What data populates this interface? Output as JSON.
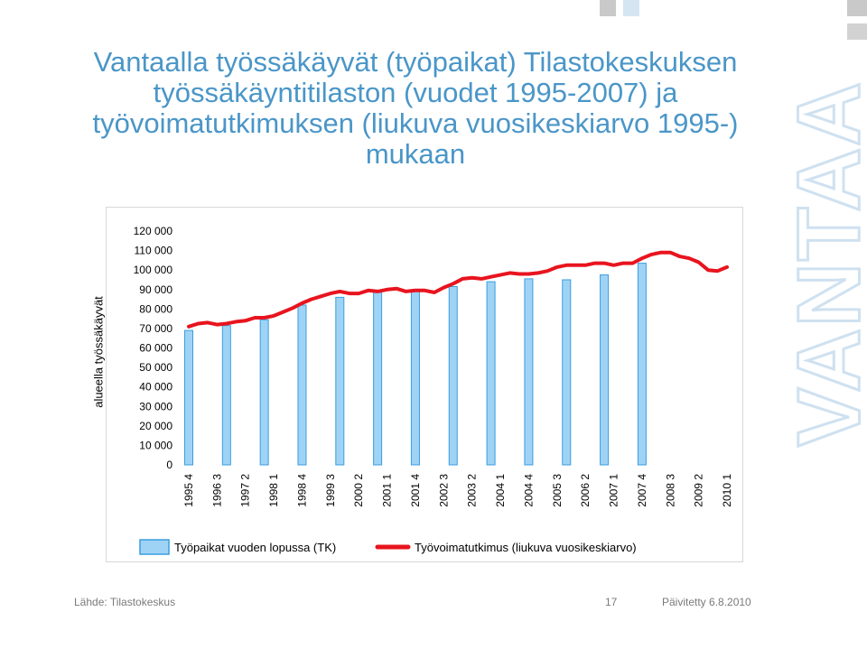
{
  "page": {
    "title": "Vantaalla työssäkäyvät   (työpaikat) Tilastokeskuksen työssäkäyntitilaston (vuodet 1995-2007) ja työvoimatutkimuksen (liukuva vuosikeskiarvo 1995-) mukaan",
    "brand_logo": "VANTAA",
    "footer_source": "Lähde: Tilastokeskus",
    "footer_page_number": "17",
    "footer_updated": "Päivitetty 6.8.2010",
    "colors": {
      "title": "#4a96c8",
      "bar_fill": "#9fd3f5",
      "bar_stroke": "#3a9ee0",
      "line": "#e8141e",
      "deco_square_gray": "#c9c9c9",
      "deco_square_blue": "#cfe0f0"
    }
  },
  "chart_data": {
    "type": "bar+line",
    "ylabel": "alueella työssäkäyvät",
    "ylim": [
      0,
      120000
    ],
    "yticks": [
      0,
      10000,
      20000,
      30000,
      40000,
      50000,
      60000,
      70000,
      80000,
      90000,
      100000,
      110000,
      120000
    ],
    "ytick_labels": [
      "0",
      "10 000",
      "20 000",
      "30 000",
      "40 000",
      "50 000",
      "60 000",
      "70 000",
      "80 000",
      "90 000",
      "100 000",
      "110 000",
      "120 000"
    ],
    "xtick_labels": [
      "1995 4",
      "1996 3",
      "1997 2",
      "1998 1",
      "1998 4",
      "1999 3",
      "2000 2",
      "2001 1",
      "2001 4",
      "2002 3",
      "2003 2",
      "2004 1",
      "2004 4",
      "2005 3",
      "2006 2",
      "2007 1",
      "2007 4",
      "2008 3",
      "2009 2",
      "2010 1"
    ],
    "grid": false,
    "legend_position": "bottom",
    "series": [
      {
        "name": "Työpaikat vuoden lopussa (TK)",
        "type": "bar",
        "x": [
          "1995 4",
          "1996 4",
          "1997 4",
          "1998 4",
          "1999 4",
          "2000 4",
          "2001 4",
          "2002 4",
          "2003 4",
          "2004 4",
          "2005 4",
          "2006 4",
          "2007 4"
        ],
        "values": [
          69000,
          71500,
          74500,
          82000,
          86000,
          88500,
          89000,
          91500,
          94000,
          95500,
          95000,
          97500,
          103500
        ]
      },
      {
        "name": "Työvoimatutkimus (liukuva vuosikeskiarvo)",
        "type": "line",
        "x": [
          "1995 4",
          "1996 1",
          "1996 2",
          "1996 3",
          "1996 4",
          "1997 1",
          "1997 2",
          "1997 3",
          "1997 4",
          "1998 1",
          "1998 2",
          "1998 3",
          "1998 4",
          "1999 1",
          "1999 2",
          "1999 3",
          "1999 4",
          "2000 1",
          "2000 2",
          "2000 3",
          "2000 4",
          "2001 1",
          "2001 2",
          "2001 3",
          "2001 4",
          "2002 1",
          "2002 2",
          "2002 3",
          "2002 4",
          "2003 1",
          "2003 2",
          "2003 3",
          "2003 4",
          "2004 1",
          "2004 2",
          "2004 3",
          "2004 4",
          "2005 1",
          "2005 2",
          "2005 3",
          "2005 4",
          "2006 1",
          "2006 2",
          "2006 3",
          "2006 4",
          "2007 1",
          "2007 2",
          "2007 3",
          "2007 4",
          "2008 1",
          "2008 2",
          "2008 3",
          "2008 4",
          "2009 1",
          "2009 2",
          "2009 3",
          "2009 4",
          "2010 1"
        ],
        "values": [
          71000,
          72500,
          73000,
          72000,
          72500,
          73500,
          74000,
          75500,
          75500,
          76500,
          78500,
          80500,
          83000,
          85000,
          86500,
          88000,
          89000,
          88000,
          88000,
          89500,
          89000,
          90000,
          90500,
          89000,
          89500,
          89500,
          88500,
          91000,
          93000,
          95500,
          96000,
          95500,
          96500,
          97500,
          98500,
          98000,
          98000,
          98500,
          99500,
          101500,
          102500,
          102500,
          102500,
          103500,
          103500,
          102500,
          103500,
          103500,
          106000,
          108000,
          109000,
          109000,
          107000,
          106000,
          104000,
          100000,
          99500,
          101500
        ]
      }
    ]
  }
}
